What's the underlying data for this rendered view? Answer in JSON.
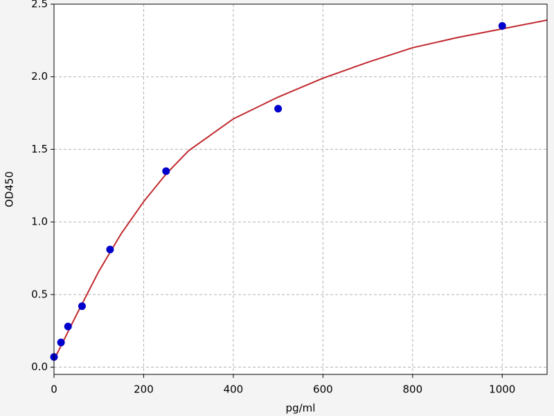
{
  "chart_data": {
    "type": "scatter",
    "x_label": "pg/ml",
    "y_label": "OD450",
    "xlim": [
      0,
      1100
    ],
    "ylim": [
      -0.05,
      2.5
    ],
    "xticks": [
      0,
      200,
      400,
      600,
      800,
      1000
    ],
    "yticks": [
      {
        "value": 0,
        "label": "0.0"
      },
      0.5,
      {
        "value": 1,
        "label": "1.0"
      },
      1.5,
      {
        "value": 2,
        "label": "2.0"
      },
      2.5
    ],
    "grid": true,
    "series": [
      {
        "type": "line",
        "color": "#c0282d",
        "x": [
          0,
          50,
          100,
          150,
          200,
          250,
          300,
          400,
          500,
          600,
          700,
          800,
          900,
          1000,
          1100
        ],
        "values": [
          0.05,
          0.36,
          0.66,
          0.92,
          1.14,
          1.33,
          1.49,
          1.71,
          1.86,
          1.99,
          2.1,
          2.2,
          2.27,
          2.33,
          2.39
        ]
      },
      {
        "type": "scatter",
        "color": "#0000cc",
        "x": [
          0,
          15.6,
          31.25,
          62.5,
          125,
          250,
          500,
          1000
        ],
        "values": [
          0.07,
          0.17,
          0.28,
          0.42,
          0.81,
          1.35,
          1.78,
          2.35
        ]
      }
    ]
  }
}
